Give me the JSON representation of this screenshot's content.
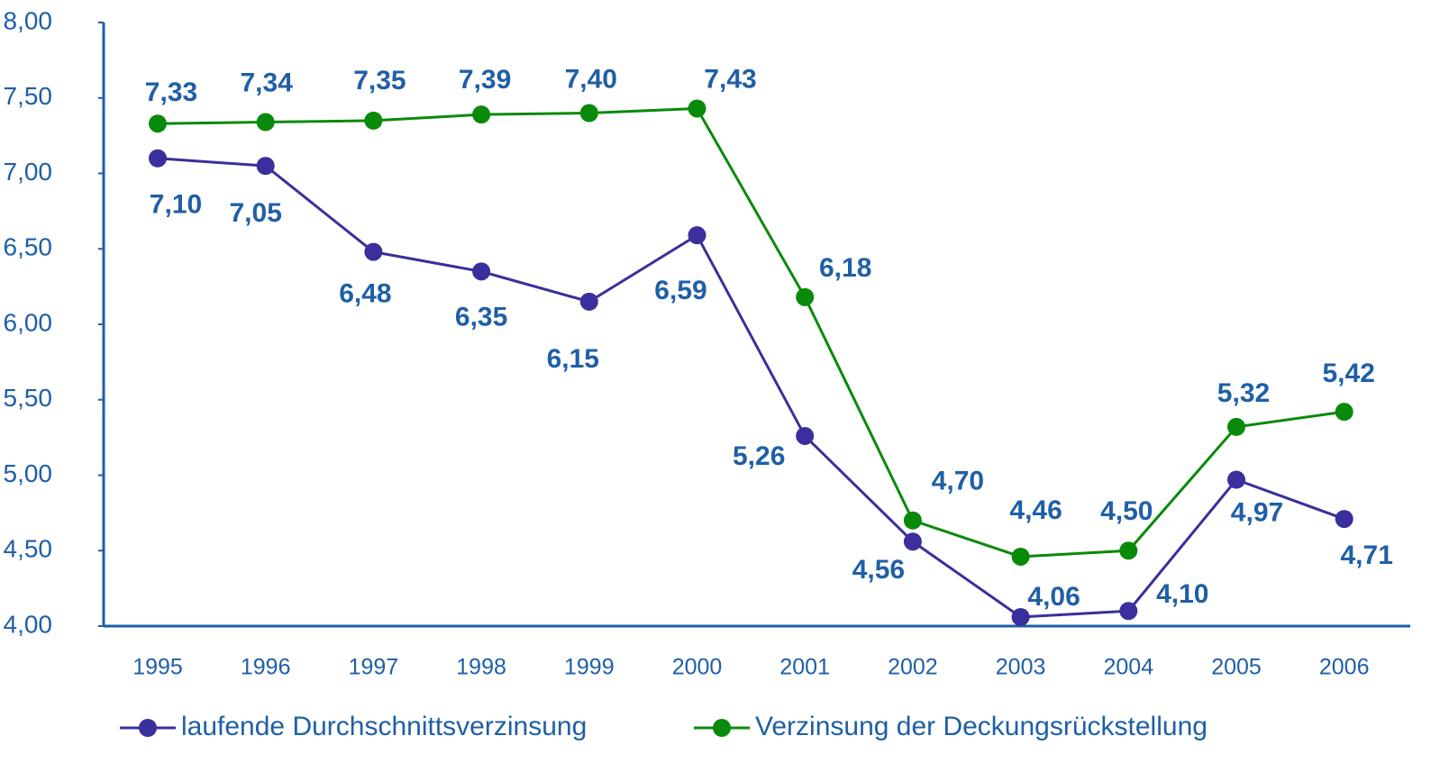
{
  "chart_data": {
    "type": "line",
    "categories": [
      "1995",
      "1996",
      "1997",
      "1998",
      "1999",
      "2000",
      "2001",
      "2002",
      "2003",
      "2004",
      "2005",
      "2006"
    ],
    "series": [
      {
        "name": "laufende Durchschnittsverzinsung",
        "color": "#3a2f9c",
        "values": [
          7.1,
          7.05,
          6.48,
          6.35,
          6.15,
          6.59,
          5.26,
          4.56,
          4.06,
          4.1,
          4.97,
          4.71
        ],
        "value_labels": [
          "7,10",
          "7,05",
          "6,48",
          "6,35",
          "6,15",
          "6,59",
          "5,26",
          "4,56",
          "4,06",
          "4,10",
          "4,97",
          "4,71"
        ]
      },
      {
        "name": "Verzinsung der Deckungsrückstellung",
        "color": "#0a8a0a",
        "values": [
          7.33,
          7.34,
          7.35,
          7.39,
          7.4,
          7.43,
          6.18,
          4.7,
          4.46,
          4.5,
          5.32,
          5.42
        ],
        "value_labels": [
          "7,33",
          "7,34",
          "7,35",
          "7,39",
          "7,40",
          "7,43",
          "6,18",
          "4,70",
          "4,46",
          "4,50",
          "5,32",
          "5,42"
        ]
      }
    ],
    "ylim": [
      4,
      8
    ],
    "yticks": [
      {
        "value": 4,
        "label": "4,00"
      },
      {
        "value": 4.5,
        "label": "4,50"
      },
      {
        "value": 5,
        "label": "5,00"
      },
      {
        "value": 5.5,
        "label": "5,50"
      },
      {
        "value": 6,
        "label": "6,00"
      },
      {
        "value": 6.5,
        "label": "6,50"
      },
      {
        "value": 7,
        "label": "7,00"
      },
      {
        "value": 7.5,
        "label": "7,50"
      },
      {
        "value": 8,
        "label": "8,00"
      }
    ],
    "label_color": "#1f5fa6",
    "legend": "bottom"
  }
}
